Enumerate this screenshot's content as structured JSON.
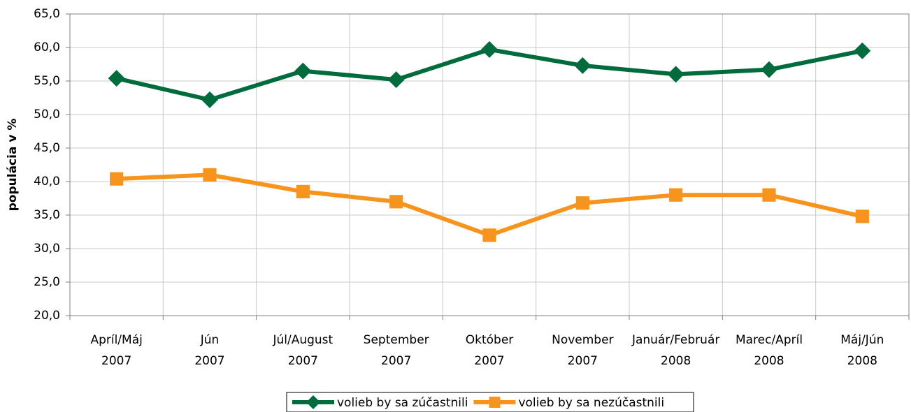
{
  "chart_data": {
    "type": "line",
    "ylabel": "populácia v %",
    "categories": [
      "Apríl/Máj\n2007",
      "Jún\n2007",
      "Júl/August\n2007",
      "September\n2007",
      "Október\n2007",
      "November\n2007",
      "Január/Február\n2008",
      "Marec/Apríl\n2008",
      "Máj/Jún\n2008"
    ],
    "series": [
      {
        "name": "volieb by sa zúčastnili",
        "color": "#006b3c",
        "marker": "diamond",
        "values": [
          55.4,
          52.2,
          56.5,
          55.2,
          59.7,
          57.3,
          56.0,
          56.7,
          59.5
        ]
      },
      {
        "name": "volieb by sa nezúčastnili",
        "color": "#f7941d",
        "marker": "square",
        "values": [
          40.4,
          41.0,
          38.5,
          37.0,
          32.0,
          36.8,
          38.0,
          38.0,
          34.8
        ]
      }
    ],
    "ylim": [
      20,
      65
    ],
    "yticks": [
      {
        "value": 20,
        "label": "20,0"
      },
      {
        "value": 25,
        "label": "25,0"
      },
      {
        "value": 30,
        "label": "30,0"
      },
      {
        "value": 35,
        "label": "35,0"
      },
      {
        "value": 40,
        "label": "40,0"
      },
      {
        "value": 45,
        "label": "45,0"
      },
      {
        "value": 50,
        "label": "50,0"
      },
      {
        "value": 55,
        "label": "55,0"
      },
      {
        "value": 60,
        "label": "60,0"
      },
      {
        "value": 65,
        "label": "65,0"
      }
    ],
    "grid": true,
    "legend": "bottom"
  }
}
